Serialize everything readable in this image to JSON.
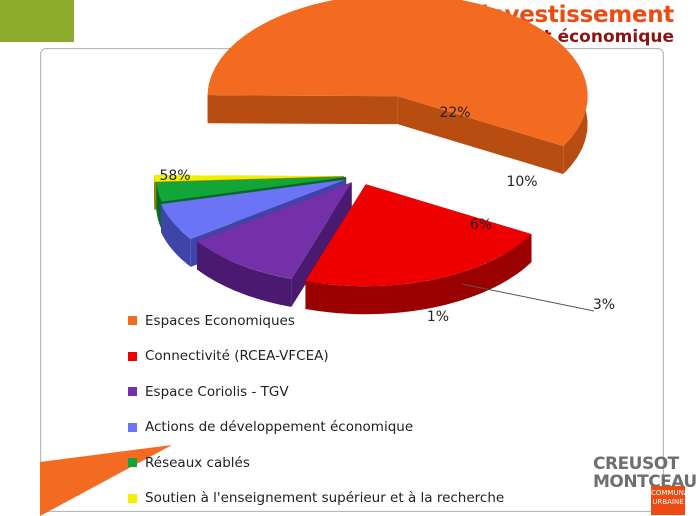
{
  "header": {
    "title": "Dépenses d’investissement",
    "subtitle": "Détail Développement économique"
  },
  "colors": {
    "title": "#ee4b12",
    "subtitle": "#8d1313",
    "accent_green": "#8cab2a"
  },
  "chart_data": {
    "type": "pie",
    "title": "",
    "legend_position": "bottom-left",
    "slices": [
      {
        "label": "Espaces Economiques",
        "value": 58,
        "value_label": "58%",
        "color": "#f26b21",
        "dark": "#b84d12"
      },
      {
        "label": "Connectivité (RCEA-VFCEA)",
        "value": 22,
        "value_label": "22%",
        "color": "#ee0000",
        "dark": "#9a0000"
      },
      {
        "label": "Espace Coriolis - TGV",
        "value": 10,
        "value_label": "10%",
        "color": "#7330a8",
        "dark": "#4a1a70"
      },
      {
        "label": "Actions de développement économique",
        "value": 6,
        "value_label": "6%",
        "color": "#6b74f5",
        "dark": "#3f45a8"
      },
      {
        "label": "Réseaux cablés",
        "value": 3,
        "value_label": "3%",
        "color": "#12a53a",
        "dark": "#0a6a24"
      },
      {
        "label": "Soutien à l'enseignement supérieur et à la recherche",
        "value": 1,
        "value_label": "1%",
        "color": "#f0f000",
        "dark": "#8a8a00"
      }
    ]
  },
  "logo": {
    "line1": "CREUSOT",
    "line2": "MONTCEAU",
    "badge_line1": "COMMUNAUTÉ",
    "badge_line2": "URBAINE"
  }
}
